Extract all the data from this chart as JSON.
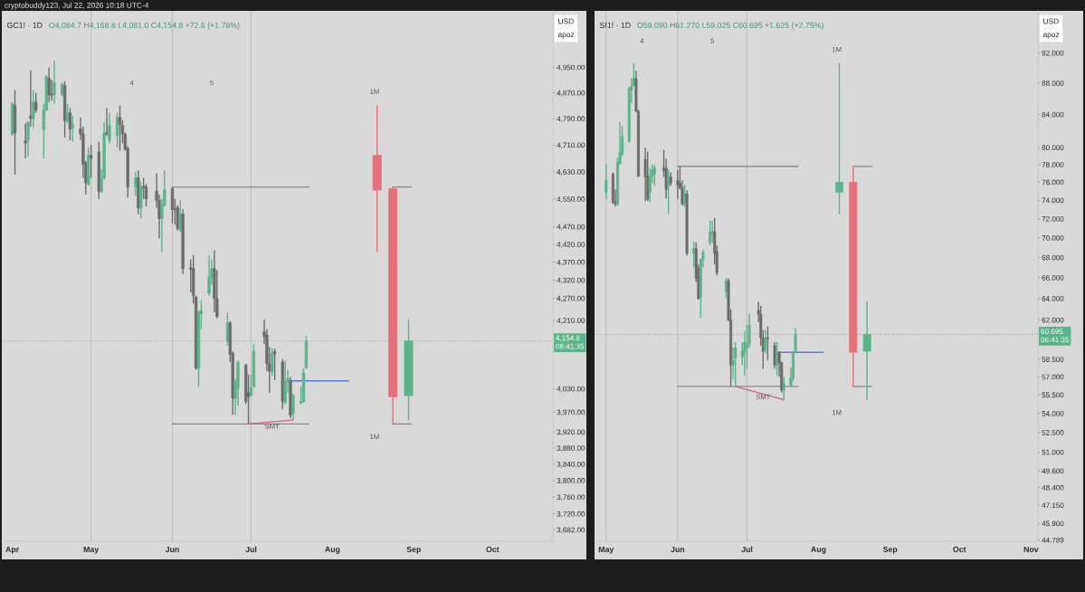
{
  "chart_data": [
    {
      "type": "candlestick",
      "title": "GC1! · 1D",
      "subtitle": "O4,084.7 H4,168.8 L4,081.0 C4,154.8 +72.6 (+1.78%)",
      "ylabel": "USD",
      "log": true,
      "xlim": [
        "2026-03-28",
        "2026-10-24"
      ],
      "xticks": [
        {
          "value": "2026-04-01",
          "label": "Apr"
        },
        {
          "value": "2026-05-01",
          "label": "May"
        },
        {
          "value": "2026-06-01",
          "label": "Jun"
        },
        {
          "value": "2026-07-01",
          "label": "Jul"
        },
        {
          "value": "2026-08-01",
          "label": "Aug"
        },
        {
          "value": "2026-09-01",
          "label": "Sep"
        },
        {
          "value": "2026-10-01",
          "label": "Oct"
        }
      ],
      "ylim": [
        3655,
        5132
      ],
      "yticks": [
        {
          "value": 4950,
          "label": "4,950.00"
        },
        {
          "value": 4870,
          "label": "4,870.00"
        },
        {
          "value": 4790,
          "label": "4,790.00"
        },
        {
          "value": 4710,
          "label": "4,710.00"
        },
        {
          "value": 4630,
          "label": "4,630.00"
        },
        {
          "value": 4550,
          "label": "4,550.00"
        },
        {
          "value": 4470,
          "label": "4,470.00"
        },
        {
          "value": 4420,
          "label": "4,420.00"
        },
        {
          "value": 4370,
          "label": "4,370.00"
        },
        {
          "value": 4320,
          "label": "4,320.00"
        },
        {
          "value": 4270,
          "label": "4,270.00"
        },
        {
          "value": 4210,
          "label": "4,210.00"
        },
        {
          "value": 4030,
          "label": "4,030.00"
        },
        {
          "value": 3970,
          "label": "3,970.00"
        },
        {
          "value": 3920,
          "label": "3,920.00"
        },
        {
          "value": 3880,
          "label": "3,880.00"
        },
        {
          "value": 3840,
          "label": "3,840.00"
        },
        {
          "value": 3800,
          "label": "3,800.00"
        },
        {
          "value": 3760,
          "label": "3,760.00"
        },
        {
          "value": 3720,
          "label": "3,720.00"
        },
        {
          "value": 3682,
          "label": "3,682.00"
        }
      ],
      "series": [
        {
          "x": [
            "2026-04-01",
            "2026-04-02",
            "2026-04-06",
            "2026-04-07",
            "2026-04-08",
            "2026-04-09",
            "2026-04-10",
            "2026-04-13",
            "2026-04-14",
            "2026-04-15",
            "2026-04-16",
            "2026-04-17",
            "2026-04-20",
            "2026-04-21",
            "2026-04-22",
            "2026-04-23",
            "2026-04-24",
            "2026-04-27",
            "2026-04-28",
            "2026-04-29",
            "2026-04-30",
            "2026-05-01",
            "2026-05-04",
            "2026-05-05",
            "2026-05-06",
            "2026-05-07",
            "2026-05-08",
            "2026-05-11",
            "2026-05-12",
            "2026-05-13",
            "2026-05-14",
            "2026-05-15",
            "2026-05-18",
            "2026-05-19",
            "2026-05-20",
            "2026-05-21",
            "2026-05-22",
            "2026-05-26",
            "2026-05-27",
            "2026-05-28",
            "2026-05-29",
            "2026-06-01",
            "2026-06-02",
            "2026-06-03",
            "2026-06-04",
            "2026-06-05",
            "2026-06-08",
            "2026-06-09",
            "2026-06-10",
            "2026-06-11",
            "2026-06-12",
            "2026-06-15",
            "2026-06-16",
            "2026-06-17",
            "2026-06-18",
            "2026-06-22",
            "2026-06-23",
            "2026-06-24",
            "2026-06-25",
            "2026-06-26",
            "2026-06-29",
            "2026-06-30",
            "2026-07-01",
            "2026-07-02",
            "2026-07-06",
            "2026-07-07",
            "2026-07-08",
            "2026-07-09",
            "2026-07-10",
            "2026-07-13",
            "2026-07-14",
            "2026-07-15",
            "2026-07-16",
            "2026-07-17",
            "2026-07-20",
            "2026-07-21",
            "2026-07-22"
          ],
          "ohlc": [
            [
              4743,
              4841,
              4738,
              4836
            ],
            [
              4831,
              4878,
              4621,
              4747
            ],
            [
              4722,
              4775,
              4670,
              4716
            ],
            [
              4724,
              4780,
              4675,
              4780
            ],
            [
              4797,
              4940,
              4766,
              4791
            ],
            [
              4789,
              4878,
              4761,
              4841
            ],
            [
              4841,
              4869,
              4808,
              4817
            ],
            [
              4757,
              4836,
              4670,
              4817
            ],
            [
              4817,
              4925,
              4813,
              4920
            ],
            [
              4915,
              4949,
              4841,
              4864
            ],
            [
              4866,
              4911,
              4845,
              4862
            ],
            [
              4864,
              4972,
              4836,
              4901
            ],
            [
              4864,
              4901,
              4859,
              4897
            ],
            [
              4892,
              4906,
              4733,
              4784
            ],
            [
              4784,
              4836,
              4775,
              4808
            ],
            [
              4808,
              4822,
              4724,
              4757
            ],
            [
              4761,
              4799,
              4720,
              4773
            ],
            [
              4759,
              4794,
              4724,
              4743
            ],
            [
              4743,
              4766,
              4612,
              4652
            ],
            [
              4657,
              4662,
              4563,
              4598
            ],
            [
              4594,
              4702,
              4589,
              4679
            ],
            [
              4679,
              4711,
              4612,
              4670
            ],
            [
              4689,
              4720,
              4550,
              4572
            ],
            [
              4572,
              4639,
              4567,
              4610
            ],
            [
              4610,
              4780,
              4607,
              4747
            ],
            [
              4747,
              4822,
              4738,
              4743
            ],
            [
              4724,
              4808,
              4715,
              4769
            ],
            [
              4738,
              4808,
              4702,
              4794
            ],
            [
              4794,
              4831,
              4693,
              4771
            ],
            [
              4769,
              4785,
              4715,
              4743
            ],
            [
              4743,
              4747,
              4693,
              4697
            ],
            [
              4699,
              4706,
              4554,
              4585
            ],
            [
              4585,
              4630,
              4558,
              4612
            ],
            [
              4612,
              4634,
              4506,
              4524
            ],
            [
              4524,
              4598,
              4493,
              4585
            ],
            [
              4587,
              4612,
              4550,
              4583
            ],
            [
              4585,
              4594,
              4528,
              4550
            ],
            [
              4572,
              4625,
              4524,
              4546
            ],
            [
              4546,
              4563,
              4437,
              4493
            ],
            [
              4493,
              4550,
              4398,
              4532
            ],
            [
              4532,
              4634,
              4528,
              4576
            ],
            [
              4580,
              4585,
              4480,
              4519
            ],
            [
              4521,
              4550,
              4476,
              4519
            ],
            [
              4525,
              4532,
              4459,
              4465
            ],
            [
              4463,
              4546,
              4455,
              4506
            ],
            [
              4506,
              4520,
              4336,
              4352
            ],
            [
              4354,
              4377,
              4286,
              4350
            ],
            [
              4352,
              4390,
              4256,
              4277
            ],
            [
              4273,
              4277,
              4079,
              4083
            ],
            [
              4083,
              4236,
              4036,
              4232
            ],
            [
              4228,
              4265,
              4187,
              4236
            ],
            [
              4284,
              4390,
              4277,
              4329
            ],
            [
              4327,
              4377,
              4307,
              4352
            ],
            [
              4352,
              4403,
              4232,
              4269
            ],
            [
              4269,
              4348,
              4216,
              4220
            ],
            [
              4155,
              4232,
              4143,
              4203
            ],
            [
              4203,
              4208,
              4099,
              4119
            ],
            [
              4123,
              4127,
              3963,
              4005
            ],
            [
              4005,
              4056,
              3963,
              4048
            ],
            [
              4032,
              4103,
              3986,
              4099
            ],
            [
              4091,
              4095,
              3990,
              3997
            ],
            [
              4020,
              4067,
              3940,
              4009
            ],
            [
              4012,
              4067,
              4012,
              4032
            ],
            [
              4036,
              4147,
              4032,
              4127
            ],
            [
              4179,
              4212,
              4147,
              4167
            ],
            [
              4171,
              4187,
              4075,
              4095
            ],
            [
              4095,
              4139,
              4020,
              4075
            ],
            [
              4075,
              4135,
              4063,
              4123
            ],
            [
              4127,
              4135,
              4052,
              4121
            ],
            [
              4099,
              4107,
              3978,
              3997
            ],
            [
              3994,
              4103,
              3990,
              4048
            ],
            [
              4048,
              4079,
              4020,
              4056
            ],
            [
              4050,
              4060,
              3955,
              3963
            ],
            [
              3967,
              4016,
              3950,
              4012
            ],
            [
              3994,
              4036,
              3990,
              3997
            ],
            [
              3997,
              4083,
              3994,
              4071
            ],
            [
              4084.7,
              4168.8,
              4081.0,
              4154.8
            ]
          ],
          "colors": [
            "#5bb38a",
            "#6b6b6b",
            "#6b6b6b",
            "#5bb38a",
            "#6b6b6b",
            "#5bb38a",
            "#6b6b6b",
            "#5bb38a",
            "#5bb38a",
            "#6b6b6b",
            "#6b6b6b",
            "#5bb38a",
            "#5bb38a",
            "#6b6b6b",
            "#5bb38a",
            "#6b6b6b",
            "#5bb38a",
            "#6b6b6b",
            "#6b6b6b",
            "#6b6b6b",
            "#5bb38a",
            "#6b6b6b",
            "#6b6b6b",
            "#5bb38a",
            "#5bb38a",
            "#6b6b6b",
            "#5bb38a",
            "#5bb38a",
            "#6b6b6b",
            "#6b6b6b",
            "#6b6b6b",
            "#6b6b6b",
            "#5bb38a",
            "#6b6b6b",
            "#5bb38a",
            "#6b6b6b",
            "#6b6b6b",
            "#6b6b6b",
            "#6b6b6b",
            "#5bb38a",
            "#5bb38a",
            "#6b6b6b",
            "#6b6b6b",
            "#6b6b6b",
            "#5bb38a",
            "#6b6b6b",
            "#6b6b6b",
            "#6b6b6b",
            "#6b6b6b",
            "#5bb38a",
            "#5bb38a",
            "#5bb38a",
            "#5bb38a",
            "#6b6b6b",
            "#6b6b6b",
            "#5bb38a",
            "#6b6b6b",
            "#6b6b6b",
            "#5bb38a",
            "#5bb38a",
            "#6b6b6b",
            "#6b6b6b",
            "#5bb38a",
            "#5bb38a",
            "#6b6b6b",
            "#6b6b6b",
            "#6b6b6b",
            "#5bb38a",
            "#6b6b6b",
            "#6b6b6b",
            "#5bb38a",
            "#5bb38a",
            "#6b6b6b",
            "#5bb38a",
            "#5bb38a",
            "#5bb38a",
            "#5bb38a"
          ]
        },
        {
          "x": [
            "2026-08-18",
            "2026-08-24",
            "2026-08-30"
          ],
          "ohlc": [
            [
              4679,
              4831,
              4398,
              4576
            ],
            [
              4580,
              4585,
              3940,
              4009
            ],
            [
              4012,
              4212,
              3950,
              4154.8
            ]
          ],
          "colors": [
            "#e4717a",
            "#e4717a",
            "#5bb38a"
          ]
        },
        {
          "type": "line",
          "x": [
            "2026-06-01",
            "2026-07-23"
          ],
          "values": [
            4585,
            4585
          ],
          "color": "#8c8c8c"
        },
        {
          "type": "line",
          "x": [
            "2026-06-01",
            "2026-07-23"
          ],
          "values": [
            3940,
            3940
          ],
          "color": "#8c8c8c"
        },
        {
          "type": "line",
          "x": [
            "2026-08-24",
            "2026-08-31"
          ],
          "values": [
            4585,
            4585
          ],
          "color": "#8c8c8c"
        },
        {
          "type": "line",
          "x": [
            "2026-08-24",
            "2026-08-31"
          ],
          "values": [
            3940,
            3940
          ],
          "color": "#8c8c8c"
        },
        {
          "type": "line",
          "x": [
            "2026-07-16",
            "2026-08-07"
          ],
          "values": [
            4050,
            4050
          ],
          "color": "#5a78d6"
        },
        {
          "type": "line",
          "x": [
            "2026-06-30",
            "2026-07-17"
          ],
          "values": [
            3940,
            3950
          ],
          "color": "#d65f7c"
        }
      ],
      "ref_lines": [
        {
          "axis": "x",
          "value": "2026-05-01",
          "color": "#c2c2c2"
        },
        {
          "axis": "x",
          "value": "2026-06-01",
          "color": "#c2c2c2"
        },
        {
          "axis": "x",
          "value": "2026-07-01",
          "color": "#c2c2c2"
        },
        {
          "axis": "y",
          "value": 4154.8,
          "label": "4,154.8\n06:41:35",
          "color": "#ababab",
          "line_style": "dotted"
        }
      ],
      "annotations": [
        "apoz",
        "4",
        "5",
        "1M",
        "1M",
        "cryptobuddy123, Jul 22, 2026 10:18 UTC-4",
        {
          "text": "SMT",
          "x": "2026-07-09",
          "y": 3932
        }
      ]
    },
    {
      "type": "candlestick",
      "title": "SI1! · 1D",
      "subtitle": "O59.090 H61.270 L59.025 C60.695 +1.625 (+2.75%)",
      "ylabel": "USD",
      "log": true,
      "xlim": [
        "2026-04-26",
        "2026-11-04"
      ],
      "xticks": [
        {
          "value": "2026-05-01",
          "label": "May"
        },
        {
          "value": "2026-06-01",
          "label": "Jun"
        },
        {
          "value": "2026-07-01",
          "label": "Jul"
        },
        {
          "value": "2026-08-01",
          "label": "Aug"
        },
        {
          "value": "2026-09-01",
          "label": "Sep"
        },
        {
          "value": "2026-10-01",
          "label": "Oct"
        },
        {
          "value": "2026-11-01",
          "label": "Nov"
        }
      ],
      "ylim": [
        44.7,
        97.9
      ],
      "yticks": [
        {
          "value": 92,
          "label": "92.000"
        },
        {
          "value": 88,
          "label": "88.000"
        },
        {
          "value": 84,
          "label": "84.000"
        },
        {
          "value": 80,
          "label": "80.000"
        },
        {
          "value": 78,
          "label": "78.000"
        },
        {
          "value": 76,
          "label": "76.000"
        },
        {
          "value": 74,
          "label": "74.000"
        },
        {
          "value": 72,
          "label": "72.000"
        },
        {
          "value": 70,
          "label": "70.000"
        },
        {
          "value": 68,
          "label": "68.000"
        },
        {
          "value": 66,
          "label": "66.000"
        },
        {
          "value": 64,
          "label": "64.000"
        },
        {
          "value": 62,
          "label": "62.000"
        },
        {
          "value": 58.5,
          "label": "58.500"
        },
        {
          "value": 57,
          "label": "57.000"
        },
        {
          "value": 55.5,
          "label": "55.500"
        },
        {
          "value": 54,
          "label": "54.000"
        },
        {
          "value": 52.5,
          "label": "52.500"
        },
        {
          "value": 51,
          "label": "51.000"
        },
        {
          "value": 49.6,
          "label": "49.600"
        },
        {
          "value": 48.4,
          "label": "48.400"
        },
        {
          "value": 47.15,
          "label": "47.150"
        },
        {
          "value": 45.9,
          "label": "45.900"
        },
        {
          "value": 44.789,
          "label": "44.789"
        }
      ],
      "series": [
        {
          "x": [
            "2026-05-01",
            "2026-05-04",
            "2026-05-05",
            "2026-05-06",
            "2026-05-07",
            "2026-05-08",
            "2026-05-11",
            "2026-05-12",
            "2026-05-13",
            "2026-05-14",
            "2026-05-15",
            "2026-05-18",
            "2026-05-19",
            "2026-05-20",
            "2026-05-21",
            "2026-05-22",
            "2026-05-26",
            "2026-05-27",
            "2026-05-28",
            "2026-05-29",
            "2026-06-01",
            "2026-06-02",
            "2026-06-03",
            "2026-06-04",
            "2026-06-05",
            "2026-06-08",
            "2026-06-09",
            "2026-06-10",
            "2026-06-11",
            "2026-06-12",
            "2026-06-15",
            "2026-06-16",
            "2026-06-17",
            "2026-06-18",
            "2026-06-22",
            "2026-06-23",
            "2026-06-24",
            "2026-06-25",
            "2026-06-26",
            "2026-06-29",
            "2026-06-30",
            "2026-07-01",
            "2026-07-02",
            "2026-07-06",
            "2026-07-07",
            "2026-07-08",
            "2026-07-09",
            "2026-07-10",
            "2026-07-13",
            "2026-07-14",
            "2026-07-15",
            "2026-07-16",
            "2026-07-17",
            "2026-07-20",
            "2026-07-21",
            "2026-07-22"
          ],
          "ohlc": [
            [
              74.9,
              78.1,
              74.1,
              76.2
            ],
            [
              76.9,
              77.1,
              73.6,
              73.8
            ],
            [
              73.8,
              75.2,
              73.3,
              73.6
            ],
            [
              73.6,
              78.8,
              73.4,
              78.3
            ],
            [
              78.1,
              83.1,
              78.0,
              79.4
            ],
            [
              79.2,
              82.6,
              79.0,
              81.3
            ],
            [
              80.7,
              87.5,
              80.6,
              87.3
            ],
            [
              87.1,
              88.6,
              85.4,
              87.6
            ],
            [
              87.7,
              90.6,
              87.5,
              88.6
            ],
            [
              88.6,
              89.6,
              84.3,
              84.4
            ],
            [
              84.4,
              84.6,
              76.6,
              76.7
            ],
            [
              78.6,
              80.0,
              73.9,
              76.6
            ],
            [
              76.7,
              79.5,
              73.9,
              74.1
            ],
            [
              74.9,
              77.6,
              73.8,
              76.7
            ],
            [
              76.7,
              78.0,
              75.9,
              77.4
            ],
            [
              76.9,
              78.0,
              75.6,
              77.6
            ],
            [
              77.6,
              79.7,
              76.6,
              77.3
            ],
            [
              77.6,
              78.7,
              74.2,
              75.2
            ],
            [
              75.6,
              77.4,
              72.5,
              76.6
            ],
            [
              76.6,
              77.1,
              75.6,
              75.9
            ],
            [
              76.2,
              77.4,
              74.1,
              75.7
            ],
            [
              75.9,
              77.8,
              75.2,
              75.4
            ],
            [
              75.4,
              76.2,
              73.4,
              73.6
            ],
            [
              73.6,
              75.7,
              73.3,
              74.7
            ],
            [
              74.7,
              75.1,
              68.2,
              68.4
            ],
            [
              68.4,
              69.6,
              67.0,
              68.9
            ],
            [
              68.9,
              69.5,
              65.6,
              65.9
            ],
            [
              66.9,
              67.3,
              63.9,
              64.0
            ],
            [
              64.1,
              67.9,
              62.2,
              67.8
            ],
            [
              67.8,
              68.8,
              67.0,
              68.5
            ],
            [
              69.5,
              71.8,
              69.2,
              70.6
            ],
            [
              70.4,
              71.8,
              69.5,
              70.7
            ],
            [
              70.6,
              72.1,
              67.3,
              68.4
            ],
            [
              68.6,
              69.2,
              66.2,
              66.5
            ],
            [
              64.6,
              66.0,
              64.1,
              65.7
            ],
            [
              65.7,
              65.9,
              61.9,
              62.0
            ],
            [
              62.0,
              63.0,
              56.2,
              58.0
            ],
            [
              58.0,
              59.5,
              56.8,
              58.4
            ],
            [
              58.6,
              60.0,
              56.2,
              59.5
            ],
            [
              58.7,
              60.0,
              58.0,
              59.2
            ],
            [
              59.1,
              61.0,
              57.1,
              60.0
            ],
            [
              59.5,
              61.6,
              57.7,
              59.8
            ],
            [
              59.8,
              62.6,
              59.5,
              61.5
            ],
            [
              62.9,
              63.7,
              61.8,
              62.5
            ],
            [
              62.5,
              63.3,
              59.7,
              60.4
            ],
            [
              60.4,
              61.1,
              57.7,
              59.2
            ],
            [
              59.3,
              61.1,
              59.0,
              60.4
            ],
            [
              60.4,
              61.4,
              58.4,
              60.3
            ],
            [
              59.7,
              60.0,
              57.7,
              58.0
            ],
            [
              58.0,
              60.0,
              57.1,
              59.1
            ],
            [
              59.1,
              59.2,
              57.0,
              58.2
            ],
            [
              58.2,
              58.3,
              55.7,
              55.9
            ],
            [
              55.9,
              57.0,
              55.1,
              56.4
            ],
            [
              56.3,
              57.8,
              56.2,
              56.9
            ],
            [
              56.9,
              59.2,
              56.6,
              59.1
            ],
            [
              59.09,
              61.27,
              59.025,
              60.695
            ]
          ],
          "colors": [
            "#5bb38a",
            "#6b6b6b",
            "#6b6b6b",
            "#5bb38a",
            "#5bb38a",
            "#5bb38a",
            "#5bb38a",
            "#5bb38a",
            "#5bb38a",
            "#6b6b6b",
            "#6b6b6b",
            "#6b6b6b",
            "#6b6b6b",
            "#5bb38a",
            "#5bb38a",
            "#5bb38a",
            "#6b6b6b",
            "#6b6b6b",
            "#5bb38a",
            "#6b6b6b",
            "#6b6b6b",
            "#6b6b6b",
            "#6b6b6b",
            "#5bb38a",
            "#6b6b6b",
            "#5bb38a",
            "#6b6b6b",
            "#6b6b6b",
            "#5bb38a",
            "#5bb38a",
            "#5bb38a",
            "#5bb38a",
            "#6b6b6b",
            "#6b6b6b",
            "#5bb38a",
            "#6b6b6b",
            "#6b6b6b",
            "#5bb38a",
            "#5bb38a",
            "#5bb38a",
            "#5bb38a",
            "#5bb38a",
            "#5bb38a",
            "#6b6b6b",
            "#6b6b6b",
            "#6b6b6b",
            "#5bb38a",
            "#6b6b6b",
            "#6b6b6b",
            "#5bb38a",
            "#6b6b6b",
            "#6b6b6b",
            "#5bb38a",
            "#5bb38a",
            "#5bb38a",
            "#5bb38a"
          ]
        },
        {
          "x": [
            "2026-08-10",
            "2026-08-16",
            "2026-08-22"
          ],
          "ohlc": [
            [
              74.9,
              90.6,
              72.5,
              76.0
            ],
            [
              76.0,
              77.8,
              56.2,
              59.1
            ],
            [
              59.2,
              63.7,
              55.1,
              60.695
            ]
          ],
          "colors": [
            "#5bb38a",
            "#e4717a",
            "#5bb38a"
          ]
        },
        {
          "type": "line",
          "x": [
            "2026-06-01",
            "2026-07-23"
          ],
          "values": [
            77.8,
            77.8
          ],
          "color": "#8c8c8c"
        },
        {
          "type": "line",
          "x": [
            "2026-06-01",
            "2026-07-23"
          ],
          "values": [
            56.2,
            56.2
          ],
          "color": "#8c8c8c"
        },
        {
          "type": "line",
          "x": [
            "2026-08-16",
            "2026-08-24"
          ],
          "values": [
            77.8,
            77.8
          ],
          "color": "#8c8c8c"
        },
        {
          "type": "line",
          "x": [
            "2026-08-16",
            "2026-08-24"
          ],
          "values": [
            56.2,
            56.2
          ],
          "color": "#8c8c8c"
        },
        {
          "type": "line",
          "x": [
            "2026-07-14",
            "2026-08-03"
          ],
          "values": [
            59.1,
            59.1
          ],
          "color": "#5a78d6"
        },
        {
          "type": "line",
          "x": [
            "2026-06-26",
            "2026-07-17"
          ],
          "values": [
            56.2,
            55.1
          ],
          "color": "#d65f7c"
        }
      ],
      "ref_lines": [
        {
          "axis": "x",
          "value": "2026-05-01",
          "color": "#c2c2c2"
        },
        {
          "axis": "x",
          "value": "2026-06-01",
          "color": "#c2c2c2"
        },
        {
          "axis": "x",
          "value": "2026-07-01",
          "color": "#c2c2c2"
        },
        {
          "axis": "y",
          "value": 60.695,
          "label": "60.695\n06:41:35",
          "color": "#ababab",
          "line_style": "dotted"
        }
      ],
      "annotations": [
        "apoz",
        "4",
        "5",
        "1M",
        "1M",
        {
          "text": "SMT",
          "x": "2026-07-08",
          "y": 55.3
        }
      ]
    }
  ]
}
